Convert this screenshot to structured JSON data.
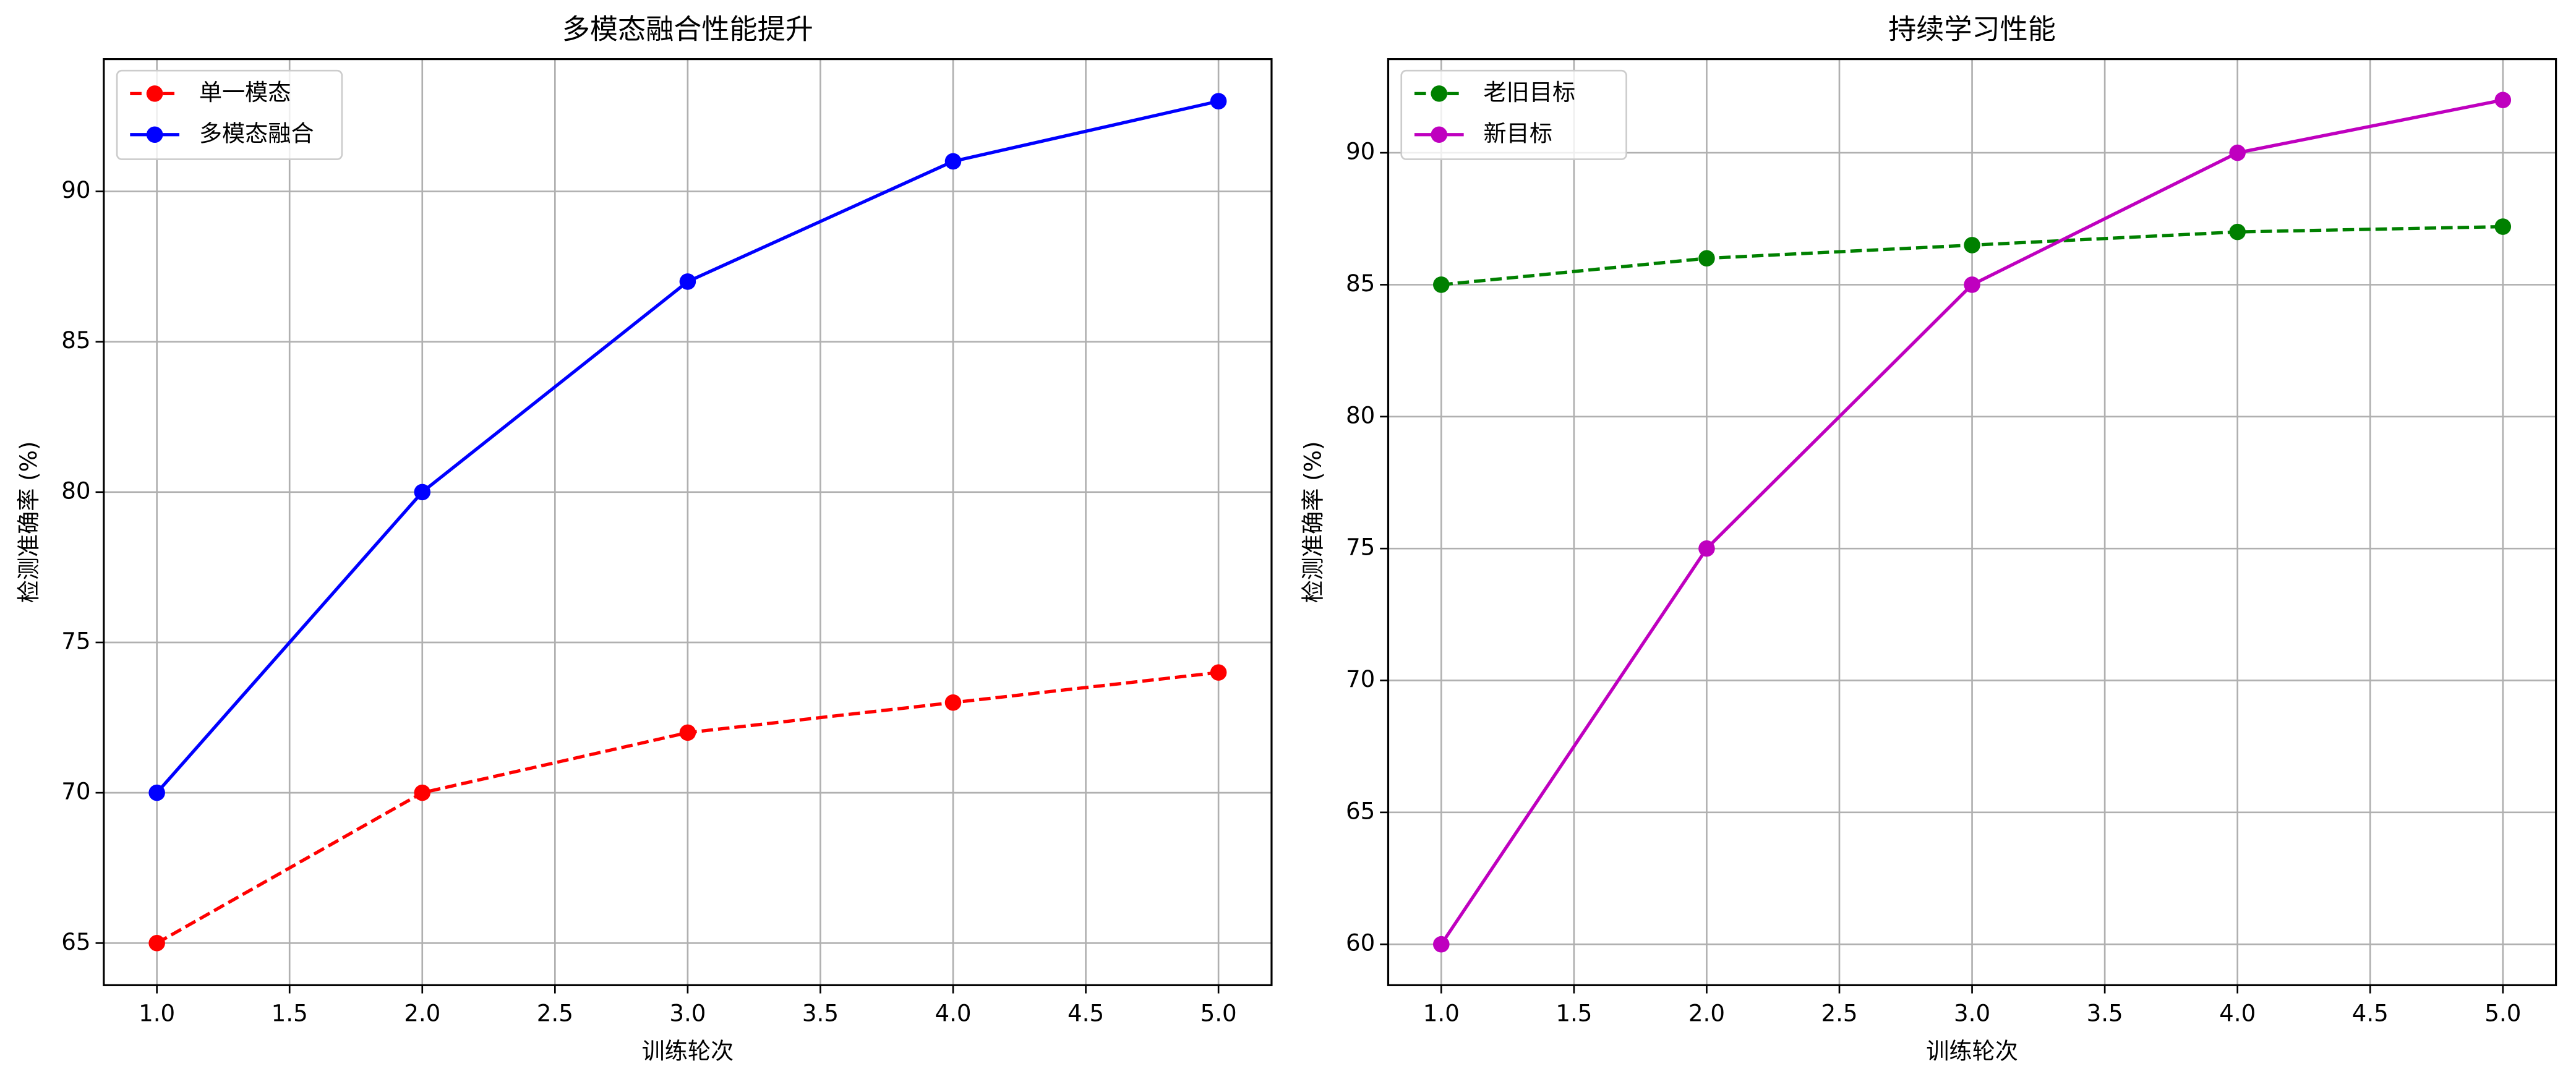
{
  "chart_data": [
    {
      "type": "line",
      "title": "多模态融合性能提升",
      "xlabel": "训练轮次",
      "ylabel": "检测准确率 (%)",
      "x": [
        1,
        2,
        3,
        4,
        5
      ],
      "series": [
        {
          "name": "单一模态",
          "color": "#ff0000",
          "linestyle": "dashed",
          "values": [
            65,
            70,
            72,
            73,
            74
          ]
        },
        {
          "name": "多模态融合",
          "color": "#0000ff",
          "linestyle": "solid",
          "values": [
            70,
            80,
            87,
            91,
            93
          ]
        }
      ],
      "xlim": [
        0.8,
        5.2
      ],
      "xticks": [
        {
          "value": 1,
          "label": "1.0"
        },
        {
          "value": 1.5,
          "label": "1.5"
        },
        {
          "value": 2,
          "label": "2.0"
        },
        {
          "value": 2.5,
          "label": "2.5"
        },
        {
          "value": 3,
          "label": "3.0"
        },
        {
          "value": 3.5,
          "label": "3.5"
        },
        {
          "value": 4,
          "label": "4.0"
        },
        {
          "value": 4.5,
          "label": "4.5"
        },
        {
          "value": 5,
          "label": "5.0"
        }
      ],
      "ylim": [
        63.6,
        94.4
      ],
      "yticks": [
        65,
        70,
        75,
        80,
        85,
        90
      ],
      "grid": true,
      "legend": "upper-left"
    },
    {
      "type": "line",
      "title": "持续学习性能",
      "xlabel": "训练轮次",
      "ylabel": "检测准确率 (%)",
      "x": [
        1,
        2,
        3,
        4,
        5
      ],
      "series": [
        {
          "name": "老旧目标",
          "color": "#008000",
          "linestyle": "dashed",
          "values": [
            85,
            86,
            86.5,
            87,
            87.2
          ]
        },
        {
          "name": "新目标",
          "color": "#bf00bf",
          "linestyle": "solid",
          "values": [
            60,
            75,
            85,
            90,
            92
          ]
        }
      ],
      "xlim": [
        0.8,
        5.2
      ],
      "xticks": [
        {
          "value": 1,
          "label": "1.0"
        },
        {
          "value": 1.5,
          "label": "1.5"
        },
        {
          "value": 2,
          "label": "2.0"
        },
        {
          "value": 2.5,
          "label": "2.5"
        },
        {
          "value": 3,
          "label": "3.0"
        },
        {
          "value": 3.5,
          "label": "3.5"
        },
        {
          "value": 4,
          "label": "4.0"
        },
        {
          "value": 4.5,
          "label": "4.5"
        },
        {
          "value": 5,
          "label": "5.0"
        }
      ],
      "ylim": [
        58.45,
        93.55
      ],
      "yticks": [
        60,
        65,
        70,
        75,
        80,
        85,
        90
      ],
      "grid": true,
      "legend": "upper-left"
    }
  ]
}
